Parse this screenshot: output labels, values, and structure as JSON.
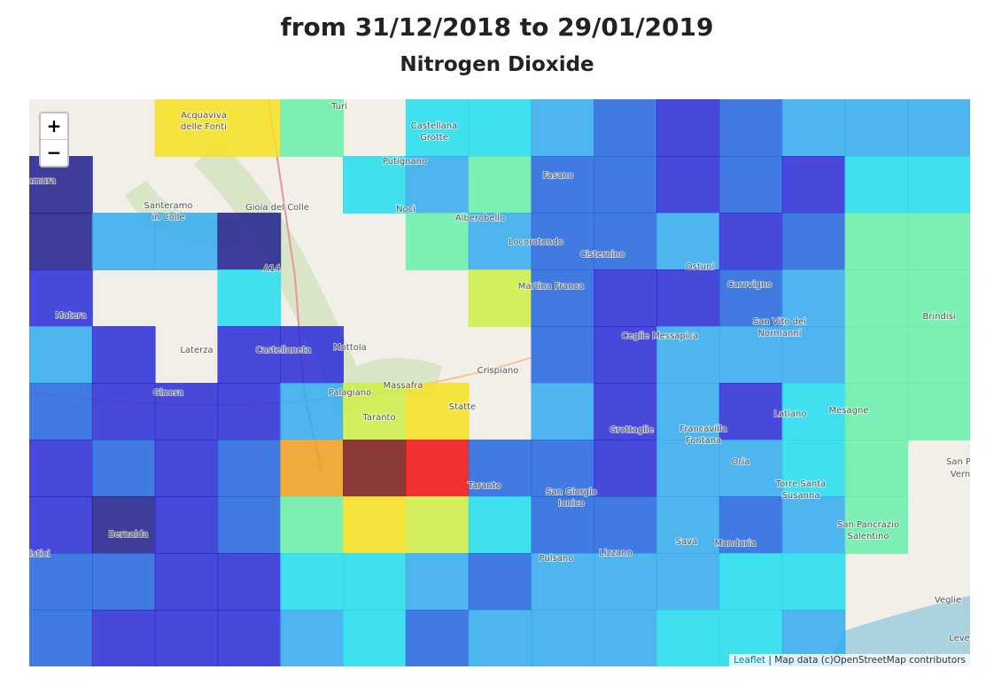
{
  "header": {
    "title": "from 31/12/2018 to 29/01/2019",
    "subtitle": "Nitrogen Dioxide"
  },
  "map": {
    "zoom_in": "+",
    "zoom_out": "−",
    "attribution": {
      "link": "Leaflet",
      "text": " | Map data (c)OpenStreetMap contributors"
    },
    "labels": [
      "Acquaviva",
      "delle Fonti",
      "Turi",
      "Castellana",
      "Grotte",
      "Putignano",
      "Fasano",
      "tamura",
      "Santeramo",
      "in Colle",
      "Gioia del Colle",
      "Noci",
      "Alberobello",
      "Locorotondo",
      "Cisternino",
      "Ostuni",
      "A14",
      "Martina Franca",
      "Carovigno",
      "Matera",
      "Ceglie Messapica",
      "San Vito dei",
      "Normanni",
      "Brindisi",
      "Laterza",
      "Castellaneta",
      "Mottola",
      "Crispiano",
      "Massafra",
      "Palagiano",
      "Ginosa",
      "Taranto",
      "Statte",
      "Latiano",
      "Mesagne",
      "Grottaglie",
      "Francavilla",
      "Fontana",
      "Oria",
      "San P",
      "Vern",
      "Taranto",
      "San Giorgio",
      "Ionico",
      "Torre Santa",
      "Susanna",
      "Bernalda",
      "istici",
      "Sava",
      "Manduria",
      "San Pancrazio",
      "Salentino",
      "Pulsano",
      "Lizzano",
      "Veglie",
      "Leve"
    ]
  }
}
